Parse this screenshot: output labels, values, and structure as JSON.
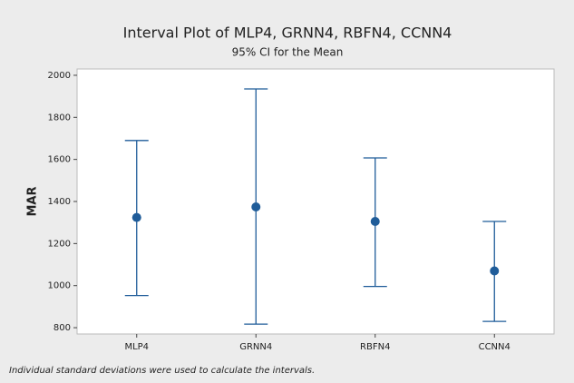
{
  "chart_data": {
    "type": "interval",
    "title": "Interval Plot of MLP4, GRNN4, RBFN4, CCNN4",
    "subtitle": "95% CI for the Mean",
    "ylabel": "MAR",
    "footnote": "Individual standard deviations were used to calculate the intervals.",
    "categories": [
      "MLP4",
      "GRNN4",
      "RBFN4",
      "CCNN4"
    ],
    "means": [
      1324,
      1374,
      1305,
      1070
    ],
    "lower": [
      953,
      817,
      996,
      830
    ],
    "upper": [
      1690,
      1935,
      1607,
      1305
    ],
    "color": "#1f5c99",
    "ylim": [
      770,
      2030
    ],
    "yticks": [
      800,
      1000,
      1200,
      1400,
      1600,
      1800,
      2000
    ]
  }
}
